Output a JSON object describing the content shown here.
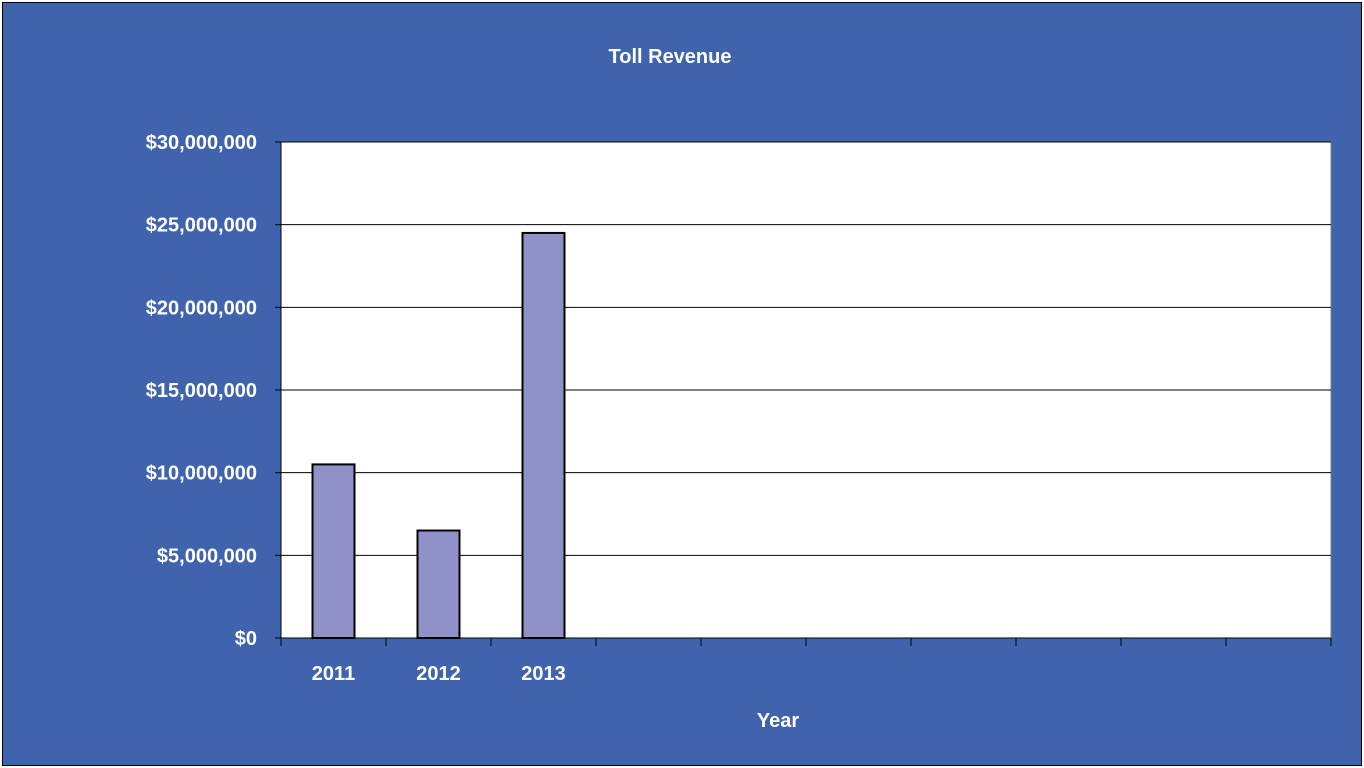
{
  "chart_data": {
    "type": "bar",
    "title": "Toll Revenue",
    "xlabel": "Year",
    "ylabel": "",
    "categories": [
      "2011",
      "2012",
      "2013",
      "",
      "",
      "",
      "",
      "",
      "",
      ""
    ],
    "values": [
      10500000,
      6500000,
      24500000,
      null,
      null,
      null,
      null,
      null,
      null,
      null
    ],
    "ylim": [
      0,
      30000000
    ],
    "y_ticks": [
      0,
      5000000,
      10000000,
      15000000,
      20000000,
      25000000,
      30000000
    ],
    "y_tick_labels": [
      "$0",
      "$5,000,000",
      "$10,000,000",
      "$15,000,000",
      "$20,000,000",
      "$25,000,000",
      "$30,000,000"
    ],
    "grid": true,
    "legend": "none"
  },
  "colors": {
    "background": "#3f63ad",
    "plot_area": "#ffffff",
    "bar_fill": "#9191c9",
    "bar_stroke": "#000000",
    "gridline": "#000000",
    "text": "#ffffff"
  }
}
